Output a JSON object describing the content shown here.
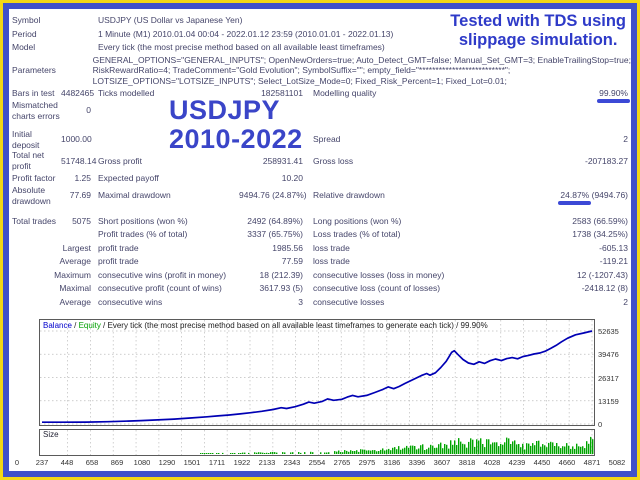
{
  "frame": {
    "outer_color": "#f4d714",
    "inner_color": "#4150c8"
  },
  "annotations": {
    "tds_line1": "Tested with TDS using",
    "tds_line2": "slippage simulation.",
    "title_line1": "USDJPY",
    "title_line2": "2010-2022",
    "accent_color": "#3a45c8",
    "highlight_color": "#3c49d6"
  },
  "report": {
    "rows": [
      {
        "type": "info",
        "label": "Symbol",
        "text": "USDJPY (US Dollar vs Japanese Yen)"
      },
      {
        "type": "info",
        "label": "Period",
        "text": "1 Minute (M1) 2010.01.04 00:04 - 2022.01.12 23:59 (2010.01.01 - 2022.01.13)"
      },
      {
        "type": "info",
        "label": "Model",
        "text": "Every tick (the most precise method based on all available least timeframes)"
      },
      {
        "type": "info3",
        "label": "Parameters",
        "lines": [
          "GENERAL_OPTIONS=\"GENERAL_INPUTS\"; OpenNewOrders=true; Auto_Detect_GMT=false; Manual_Set_GMT=3; EnableTrailingStop=true;",
          "RiskRewardRatio=4; TradeComment=\"Gold Evolution\"; SymbolSuffix=\"\"; empty_field=\"**************************\";",
          "LOTSIZE_OPTIONS=\"LOTSIZE_INPUTS\"; Select_LotSize_Mode=0; Fixed_Risk_Percent=1; Fixed_Lot=0.01;"
        ]
      },
      {
        "type": "stats",
        "cells": [
          "Bars in test",
          "4482465",
          "Ticks modelled",
          "182581101",
          "Modelling quality",
          {
            "t": "99.90%",
            "m": "99.90%"
          }
        ]
      },
      {
        "type": "stats",
        "cells": [
          "Mismatched charts errors",
          "0",
          "",
          "",
          "",
          ""
        ]
      },
      {
        "type": "spacer"
      },
      {
        "type": "stats",
        "cells": [
          "Initial deposit",
          "1000.00",
          "",
          "",
          "Spread",
          "2"
        ]
      },
      {
        "type": "stats",
        "cells": [
          "Total net profit",
          "51748.14",
          "Gross profit",
          "258931.41",
          "Gross loss",
          "-207183.27"
        ]
      },
      {
        "type": "stats",
        "cells": [
          "Profit factor",
          "1.25",
          "Expected payoff",
          "10.20",
          "",
          ""
        ]
      },
      {
        "type": "stats",
        "cells": [
          "Absolute drawdown",
          "77.69",
          "Maximal drawdown",
          "9494.76 (24.87%)",
          "Relative drawdown",
          {
            "t": "24.87% (9494.76)",
            "m": "24.87%"
          }
        ]
      },
      {
        "type": "spacer"
      },
      {
        "type": "stats",
        "cells": [
          "Total trades",
          "5075",
          "Short positions (won %)",
          "2492 (64.89%)",
          "Long positions (won %)",
          "2583 (66.59%)"
        ]
      },
      {
        "type": "stats",
        "cells": [
          "",
          "",
          "Profit trades (% of total)",
          "3337 (65.75%)",
          "Loss trades (% of total)",
          "1738 (34.25%)"
        ]
      },
      {
        "type": "stats",
        "r1": true,
        "cells": [
          "Largest",
          "",
          "profit trade",
          "1985.56",
          "loss trade",
          "-605.13"
        ]
      },
      {
        "type": "stats",
        "r1": true,
        "cells": [
          "Average",
          "",
          "profit trade",
          "77.59",
          "loss trade",
          "-119.21"
        ]
      },
      {
        "type": "stats",
        "r1": true,
        "cells": [
          "Maximum",
          "",
          "consecutive wins (profit in money)",
          "18 (212.39)",
          "consecutive losses (loss in money)",
          "12 (-1207.43)"
        ]
      },
      {
        "type": "stats",
        "r1": true,
        "cells": [
          "Maximal",
          "",
          "consecutive profit (count of wins)",
          "3617.93 (5)",
          "consecutive loss (count of losses)",
          "-2418.12 (8)"
        ]
      },
      {
        "type": "stats",
        "r1": true,
        "cells": [
          "Average",
          "",
          "consecutive wins",
          "3",
          "consecutive losses",
          "2"
        ]
      }
    ]
  },
  "chart_data": {
    "type": "line",
    "header": {
      "balance_label": "Balance",
      "separator": " / ",
      "equity_label": "Equity",
      "suffix": " / Every tick (the most precise method based on all available least timeframes to generate each tick) / 99.90%",
      "balance_color": "#0000cc",
      "equity_color": "#00a000"
    },
    "ylabel": "",
    "xlabel": "",
    "y_ticks": [
      52635,
      39476,
      26317,
      13159,
      0
    ],
    "y_max": 52635,
    "x_ticks": [
      0,
      237,
      448,
      658,
      869,
      1080,
      1290,
      1501,
      1711,
      1922,
      2133,
      2343,
      2554,
      2765,
      2975,
      3186,
      3396,
      3607,
      3818,
      4028,
      4239,
      4450,
      4660,
      4871,
      5082
    ],
    "x_max": 5082,
    "line_color": "#0000b4",
    "grid_color": "#bdbdbd",
    "border_color": "#5a5a5a",
    "balance_series": [
      [
        0,
        1000
      ],
      [
        200,
        1020
      ],
      [
        410,
        1060
      ],
      [
        610,
        1300
      ],
      [
        760,
        1600
      ],
      [
        915,
        1900
      ],
      [
        1070,
        2300
      ],
      [
        1220,
        2800
      ],
      [
        1370,
        3400
      ],
      [
        1525,
        4100
      ],
      [
        1625,
        4600
      ],
      [
        1730,
        5100
      ],
      [
        1830,
        5700
      ],
      [
        1930,
        6400
      ],
      [
        2030,
        7200
      ],
      [
        2135,
        8200
      ],
      [
        2210,
        9200
      ],
      [
        2260,
        8800
      ],
      [
        2340,
        9800
      ],
      [
        2415,
        11200
      ],
      [
        2465,
        12400
      ],
      [
        2515,
        11800
      ],
      [
        2590,
        12800
      ],
      [
        2640,
        14200
      ],
      [
        2695,
        13400
      ],
      [
        2770,
        14000
      ],
      [
        2820,
        15200
      ],
      [
        2870,
        16200
      ],
      [
        2920,
        15400
      ],
      [
        3000,
        16200
      ],
      [
        3075,
        17800
      ],
      [
        3150,
        19600
      ],
      [
        3200,
        21000
      ],
      [
        3250,
        20000
      ],
      [
        3300,
        21200
      ],
      [
        3355,
        23000
      ],
      [
        3430,
        25200
      ],
      [
        3505,
        27400
      ],
      [
        3555,
        28600
      ],
      [
        3585,
        27600
      ],
      [
        3635,
        29000
      ],
      [
        3685,
        32000
      ],
      [
        3735,
        35500
      ],
      [
        3760,
        38000
      ],
      [
        3785,
        40500
      ],
      [
        3810,
        41500
      ],
      [
        3840,
        39500
      ],
      [
        3890,
        36500
      ],
      [
        3940,
        34500
      ],
      [
        3990,
        33800
      ],
      [
        4040,
        35200
      ],
      [
        4090,
        34300
      ],
      [
        4140,
        35800
      ],
      [
        4190,
        36800
      ],
      [
        4245,
        35900
      ],
      [
        4295,
        37000
      ],
      [
        4345,
        37600
      ],
      [
        4395,
        36900
      ],
      [
        4445,
        38200
      ],
      [
        4495,
        38800
      ],
      [
        4545,
        39600
      ],
      [
        4600,
        40200
      ],
      [
        4650,
        41200
      ],
      [
        4700,
        42800
      ],
      [
        4750,
        44500
      ],
      [
        4800,
        46500
      ],
      [
        4855,
        48500
      ],
      [
        4930,
        50500
      ],
      [
        5005,
        51500
      ],
      [
        5082,
        52635
      ]
    ],
    "size_panel": {
      "label": "Size",
      "bar_color": "#00a400",
      "envelope": [
        [
          0,
          0
        ],
        [
          0.28,
          0
        ],
        [
          0.31,
          0.06
        ],
        [
          0.34,
          0.05
        ],
        [
          0.37,
          0.1
        ],
        [
          0.4,
          0.08
        ],
        [
          0.43,
          0.12
        ],
        [
          0.46,
          0.1
        ],
        [
          0.49,
          0.14
        ],
        [
          0.52,
          0.12
        ],
        [
          0.55,
          0.2
        ],
        [
          0.58,
          0.25
        ],
        [
          0.6,
          0.2
        ],
        [
          0.63,
          0.35
        ],
        [
          0.66,
          0.45
        ],
        [
          0.68,
          0.4
        ],
        [
          0.7,
          0.55
        ],
        [
          0.72,
          0.6
        ],
        [
          0.74,
          0.7
        ],
        [
          0.76,
          0.85
        ],
        [
          0.78,
          0.75
        ],
        [
          0.8,
          0.95
        ],
        [
          0.82,
          0.65
        ],
        [
          0.84,
          0.85
        ],
        [
          0.86,
          0.7
        ],
        [
          0.88,
          0.55
        ],
        [
          0.9,
          0.65
        ],
        [
          0.92,
          0.6
        ],
        [
          0.94,
          0.55
        ],
        [
          0.96,
          0.65
        ],
        [
          0.98,
          0.6
        ],
        [
          1.0,
          1.0
        ]
      ]
    }
  }
}
